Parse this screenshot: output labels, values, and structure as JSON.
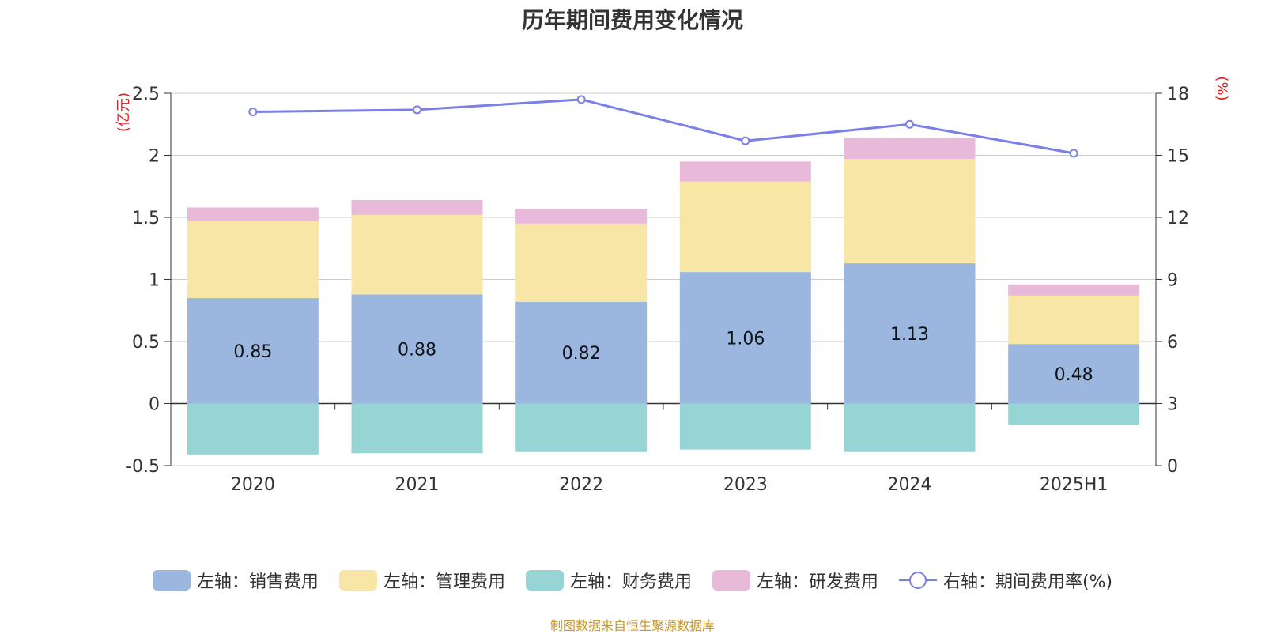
{
  "title": "历年期间费用变化情况",
  "source": "制图数据来自恒生聚源数据库",
  "chart_data": {
    "type": "bar",
    "stacked": true,
    "categories": [
      "2020",
      "2021",
      "2022",
      "2023",
      "2024",
      "2025H1"
    ],
    "left_axis": {
      "unit": "(亿元)",
      "ylim": [
        -0.5,
        2.5
      ],
      "ticks": [
        "-0.5",
        "0",
        "0.5",
        "1",
        "1.5",
        "2",
        "2.5"
      ]
    },
    "right_axis": {
      "unit": "(%)",
      "ylim": [
        0,
        18
      ],
      "ticks": [
        "0",
        "3",
        "6",
        "9",
        "12",
        "15",
        "18"
      ]
    },
    "grid": true,
    "legend_position": "bottom",
    "series": [
      {
        "name": "左轴：销售费用",
        "axis": "left",
        "color": "#9bb7e0",
        "values": [
          0.85,
          0.88,
          0.82,
          1.06,
          1.13,
          0.48
        ],
        "labels": [
          "0.85",
          "0.88",
          "0.82",
          "1.06",
          "1.13",
          "0.48"
        ]
      },
      {
        "name": "左轴：管理费用",
        "axis": "left",
        "color": "#f8e6a6",
        "values": [
          0.62,
          0.64,
          0.63,
          0.73,
          0.84,
          0.39
        ]
      },
      {
        "name": "左轴：财务费用",
        "axis": "left",
        "color": "#97d4d4",
        "values": [
          -0.41,
          -0.4,
          -0.39,
          -0.37,
          -0.39,
          -0.17
        ]
      },
      {
        "name": "左轴：研发费用",
        "axis": "left",
        "color": "#e8b9d9",
        "values": [
          0.11,
          0.12,
          0.12,
          0.16,
          0.17,
          0.09
        ]
      },
      {
        "name": "右轴：期间费用率(%)",
        "axis": "right",
        "type": "line",
        "color": "#7b7fe8",
        "values": [
          17.1,
          17.2,
          17.7,
          15.7,
          16.5,
          15.1
        ]
      }
    ]
  }
}
